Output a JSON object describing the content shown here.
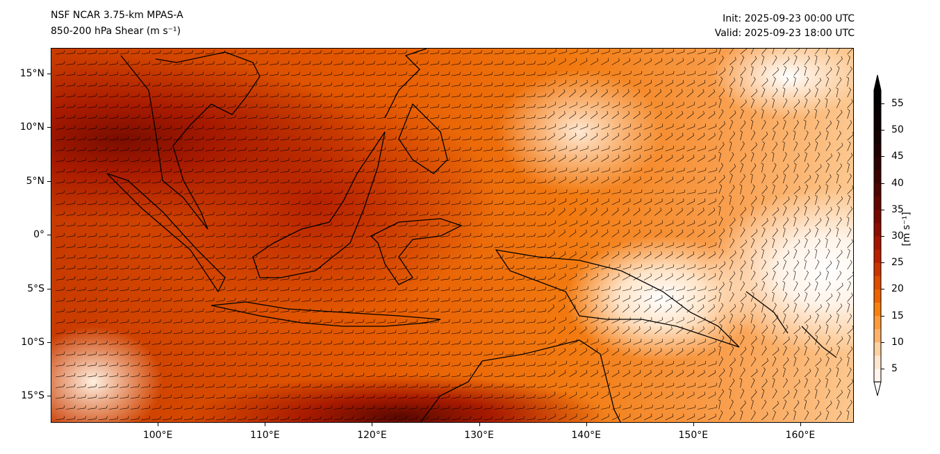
{
  "header": {
    "title_line1": "NSF NCAR 3.75-km MPAS-A",
    "title_line2": "850-200 hPa Shear (m s⁻¹)",
    "init": "Init: 2025-09-23 00:00 UTC",
    "valid": "Valid: 2025-09-23 18:00 UTC"
  },
  "map": {
    "lon_range": [
      90,
      165
    ],
    "lat_range": [
      -17.5,
      17.4
    ],
    "lon_ticks": [
      {
        "v": 100,
        "label": "100°E"
      },
      {
        "v": 110,
        "label": "110°E"
      },
      {
        "v": 120,
        "label": "120°E"
      },
      {
        "v": 130,
        "label": "130°E"
      },
      {
        "v": 140,
        "label": "140°E"
      },
      {
        "v": 150,
        "label": "150°E"
      },
      {
        "v": 160,
        "label": "160°E"
      }
    ],
    "lat_ticks": [
      {
        "v": 15,
        "label": "15°N"
      },
      {
        "v": 10,
        "label": "10°N"
      },
      {
        "v": 5,
        "label": "5°N"
      },
      {
        "v": 0,
        "label": "0°"
      },
      {
        "v": -5,
        "label": "5°S"
      },
      {
        "v": -10,
        "label": "10°S"
      },
      {
        "v": -15,
        "label": "15°S"
      }
    ]
  },
  "colorbar": {
    "label": "[m s⁻¹]",
    "range": [
      2.5,
      57.5
    ],
    "ticks": [
      {
        "v": 5,
        "label": "5"
      },
      {
        "v": 10,
        "label": "10"
      },
      {
        "v": 15,
        "label": "15"
      },
      {
        "v": 20,
        "label": "20"
      },
      {
        "v": 25,
        "label": "25"
      },
      {
        "v": 30,
        "label": "30"
      },
      {
        "v": 35,
        "label": "35"
      },
      {
        "v": 40,
        "label": "40"
      },
      {
        "v": 45,
        "label": "45"
      },
      {
        "v": 50,
        "label": "50"
      },
      {
        "v": 55,
        "label": "55"
      }
    ],
    "colors": [
      "#fff5eb",
      "#fee6ce",
      "#fdd0a2",
      "#fdb36b",
      "#fd9a3a",
      "#f8800d",
      "#ee6200",
      "#de4c00",
      "#cc3500",
      "#b92000",
      "#a51400",
      "#8d0d00",
      "#760800",
      "#620600",
      "#4e0400",
      "#3c0300",
      "#2c0200",
      "#1e0100",
      "#140100",
      "#0c0000",
      "#060000",
      "#000000"
    ],
    "over_color": "#000000",
    "under_color": "#ffffff"
  }
}
